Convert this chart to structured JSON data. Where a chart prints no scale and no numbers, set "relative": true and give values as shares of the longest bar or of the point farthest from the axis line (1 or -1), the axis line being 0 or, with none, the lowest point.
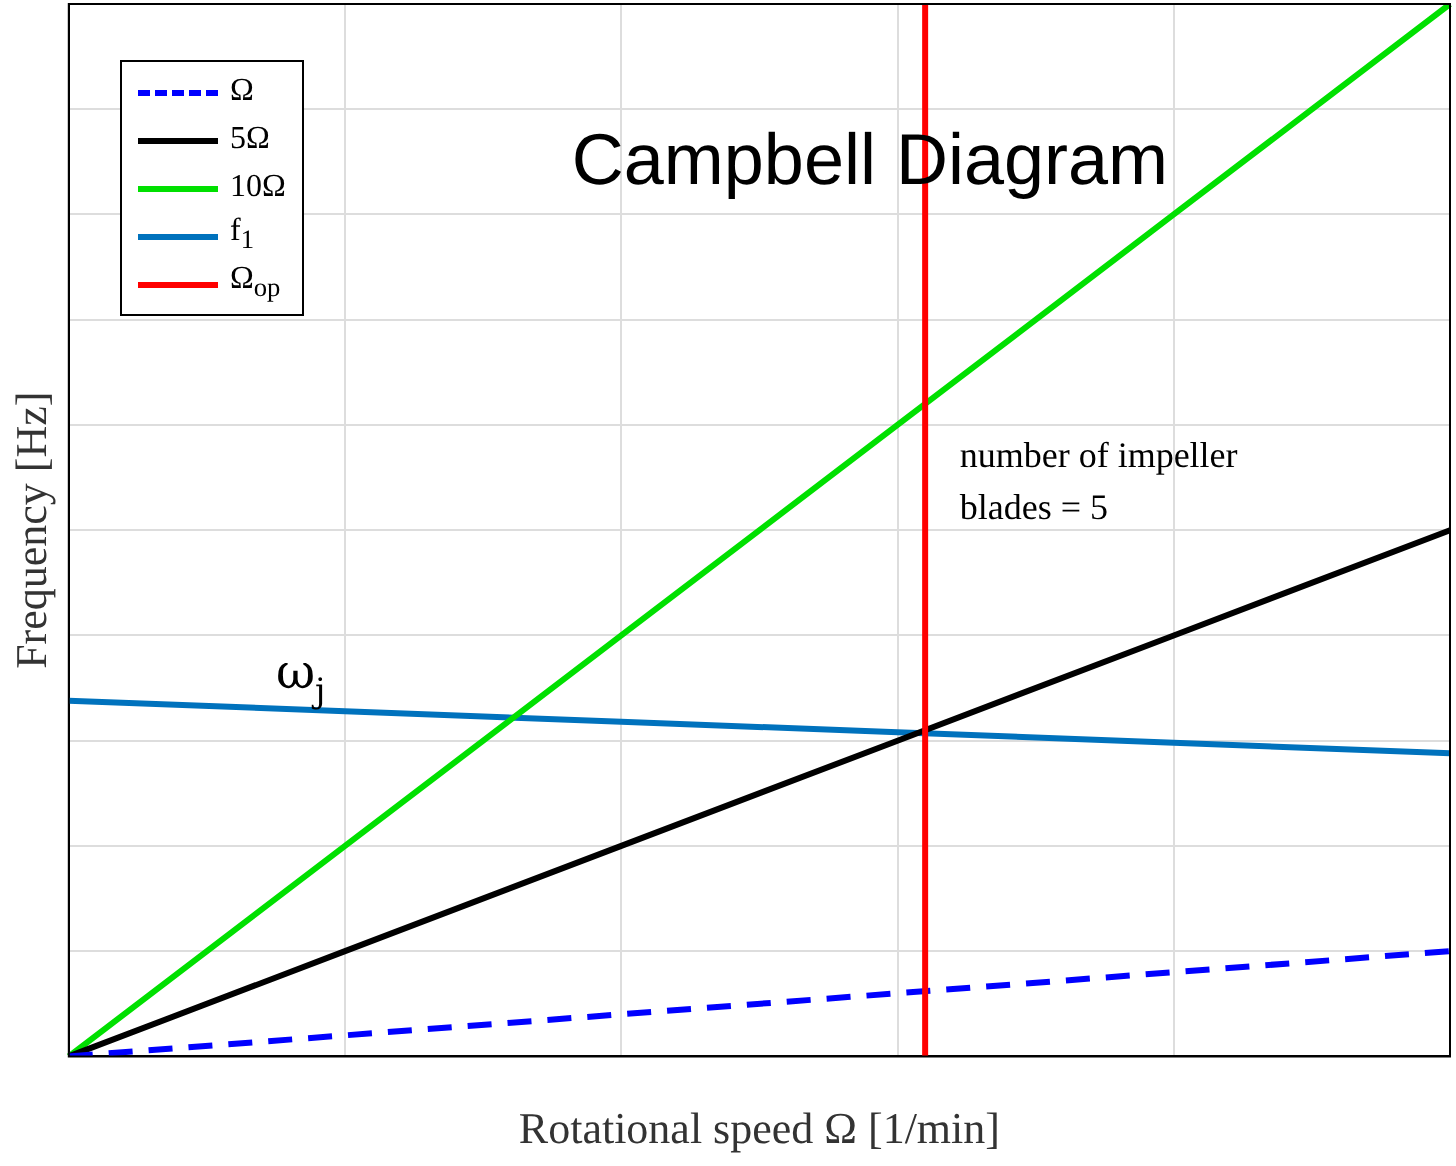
{
  "chart_data": {
    "type": "line",
    "title": "Campbell Diagram",
    "xlabel": "Rotational speed Ω [1/min]",
    "ylabel": "Frequency [Hz]",
    "relative": true,
    "categories": [
      null,
      null,
      null,
      null,
      null,
      null
    ],
    "series": [
      {
        "name": "Ω",
        "color": "#0000ff",
        "values": [
          0,
          0.02,
          0.04,
          0.06,
          0.08,
          0.1
        ],
        "line_style": "dashed"
      },
      {
        "name": "5Ω",
        "color": "#000000",
        "values": [
          0,
          0.1,
          0.2,
          0.3,
          0.4,
          0.5
        ]
      },
      {
        "name": "10Ω",
        "color": "#00e000",
        "values": [
          0,
          0.2,
          0.4,
          0.6,
          0.8,
          1
        ]
      },
      {
        "name": "f$_{1}$",
        "color": "#0072bd",
        "values": [
          0.338,
          0.328,
          0.318,
          0.308,
          0.298,
          0.288
        ]
      }
    ],
    "ref_lines": [
      {
        "axis": "x",
        "label": "Ω$_{op}$",
        "color": "#ff0000"
      }
    ],
    "annotations": [
      "number of impeller blades = 5",
      "ω$_{j}$"
    ],
    "grid": true,
    "legend": "top left",
    "line_style": "solid",
    "marker": "none"
  }
}
